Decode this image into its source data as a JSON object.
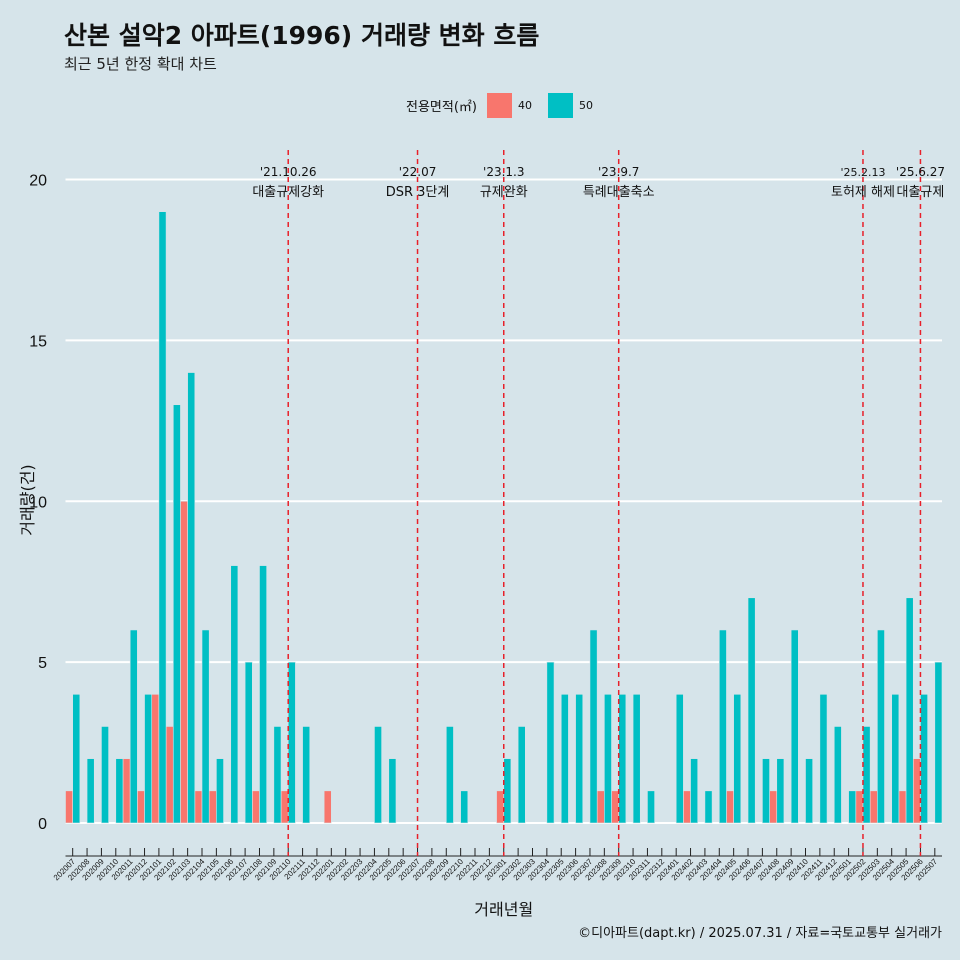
{
  "title": "산본 설악2 아파트(1996) 거래량 변화 흐름",
  "subtitle": "최근 5년 한정 확대 차트",
  "caption": "©디아파트(dapt.kr) / 2025.07.31 / 자료=국토교통부 실거래가",
  "legend": {
    "title": "전용면적(㎡)",
    "items": [
      {
        "label": "40",
        "color": "#f8766d"
      },
      {
        "label": "50",
        "color": "#00bfc4"
      }
    ]
  },
  "chart_data": {
    "type": "bar",
    "xlabel": "거래년월",
    "ylabel": "거래량(건)",
    "ylim": [
      0,
      20
    ],
    "yticks": [
      0,
      5,
      10,
      15,
      20
    ],
    "legend_position": "top",
    "grid": "horizontal",
    "categories": [
      "202007",
      "202008",
      "202009",
      "202010",
      "202011",
      "202012",
      "202101",
      "202102",
      "202103",
      "202104",
      "202105",
      "202106",
      "202107",
      "202108",
      "202109",
      "202110",
      "202111",
      "202112",
      "202201",
      "202202",
      "202203",
      "202204",
      "202205",
      "202206",
      "202207",
      "202208",
      "202209",
      "202210",
      "202211",
      "202212",
      "202301",
      "202302",
      "202303",
      "202304",
      "202305",
      "202306",
      "202307",
      "202308",
      "202309",
      "202310",
      "202311",
      "202312",
      "202401",
      "202402",
      "202403",
      "202404",
      "202405",
      "202406",
      "202407",
      "202408",
      "202409",
      "202410",
      "202411",
      "202412",
      "202501",
      "202502",
      "202503",
      "202504",
      "202505",
      "202506",
      "202507"
    ],
    "series": [
      {
        "name": "40",
        "color": "#f8766d",
        "values": [
          1,
          0,
          0,
          0,
          2,
          1,
          4,
          3,
          10,
          1,
          1,
          0,
          0,
          1,
          0,
          1,
          0,
          0,
          1,
          0,
          0,
          0,
          0,
          0,
          0,
          0,
          0,
          0,
          0,
          0,
          1,
          0,
          0,
          0,
          0,
          0,
          0,
          1,
          1,
          0,
          0,
          0,
          0,
          1,
          0,
          0,
          1,
          0,
          0,
          1,
          0,
          0,
          0,
          0,
          0,
          1,
          1,
          0,
          1,
          2,
          0
        ]
      },
      {
        "name": "50",
        "color": "#00bfc4",
        "values": [
          4,
          2,
          3,
          2,
          6,
          4,
          19,
          13,
          14,
          6,
          2,
          8,
          5,
          8,
          3,
          5,
          3,
          0,
          0,
          0,
          0,
          3,
          2,
          0,
          0,
          0,
          3,
          1,
          0,
          0,
          2,
          3,
          0,
          5,
          4,
          4,
          6,
          4,
          4,
          4,
          1,
          0,
          4,
          2,
          1,
          6,
          4,
          7,
          2,
          2,
          6,
          2,
          4,
          3,
          1,
          3,
          6,
          4,
          7,
          4,
          5
        ]
      }
    ],
    "events": [
      {
        "date": "'21.10.26",
        "label": "대출규제강화",
        "month": "202110"
      },
      {
        "date": "'22.07",
        "label": "DSR 3단계",
        "month": "202207"
      },
      {
        "date": "'23.1.3",
        "label": "규제완화",
        "month": "202301"
      },
      {
        "date": "'23.9.7",
        "label": "특례대출축소",
        "month": "202309"
      },
      {
        "date": "'25.2.13",
        "label": "토허제 해제",
        "month": "202502"
      },
      {
        "date": "'25.6.27",
        "label": "대출규제",
        "month": "202506"
      }
    ]
  }
}
